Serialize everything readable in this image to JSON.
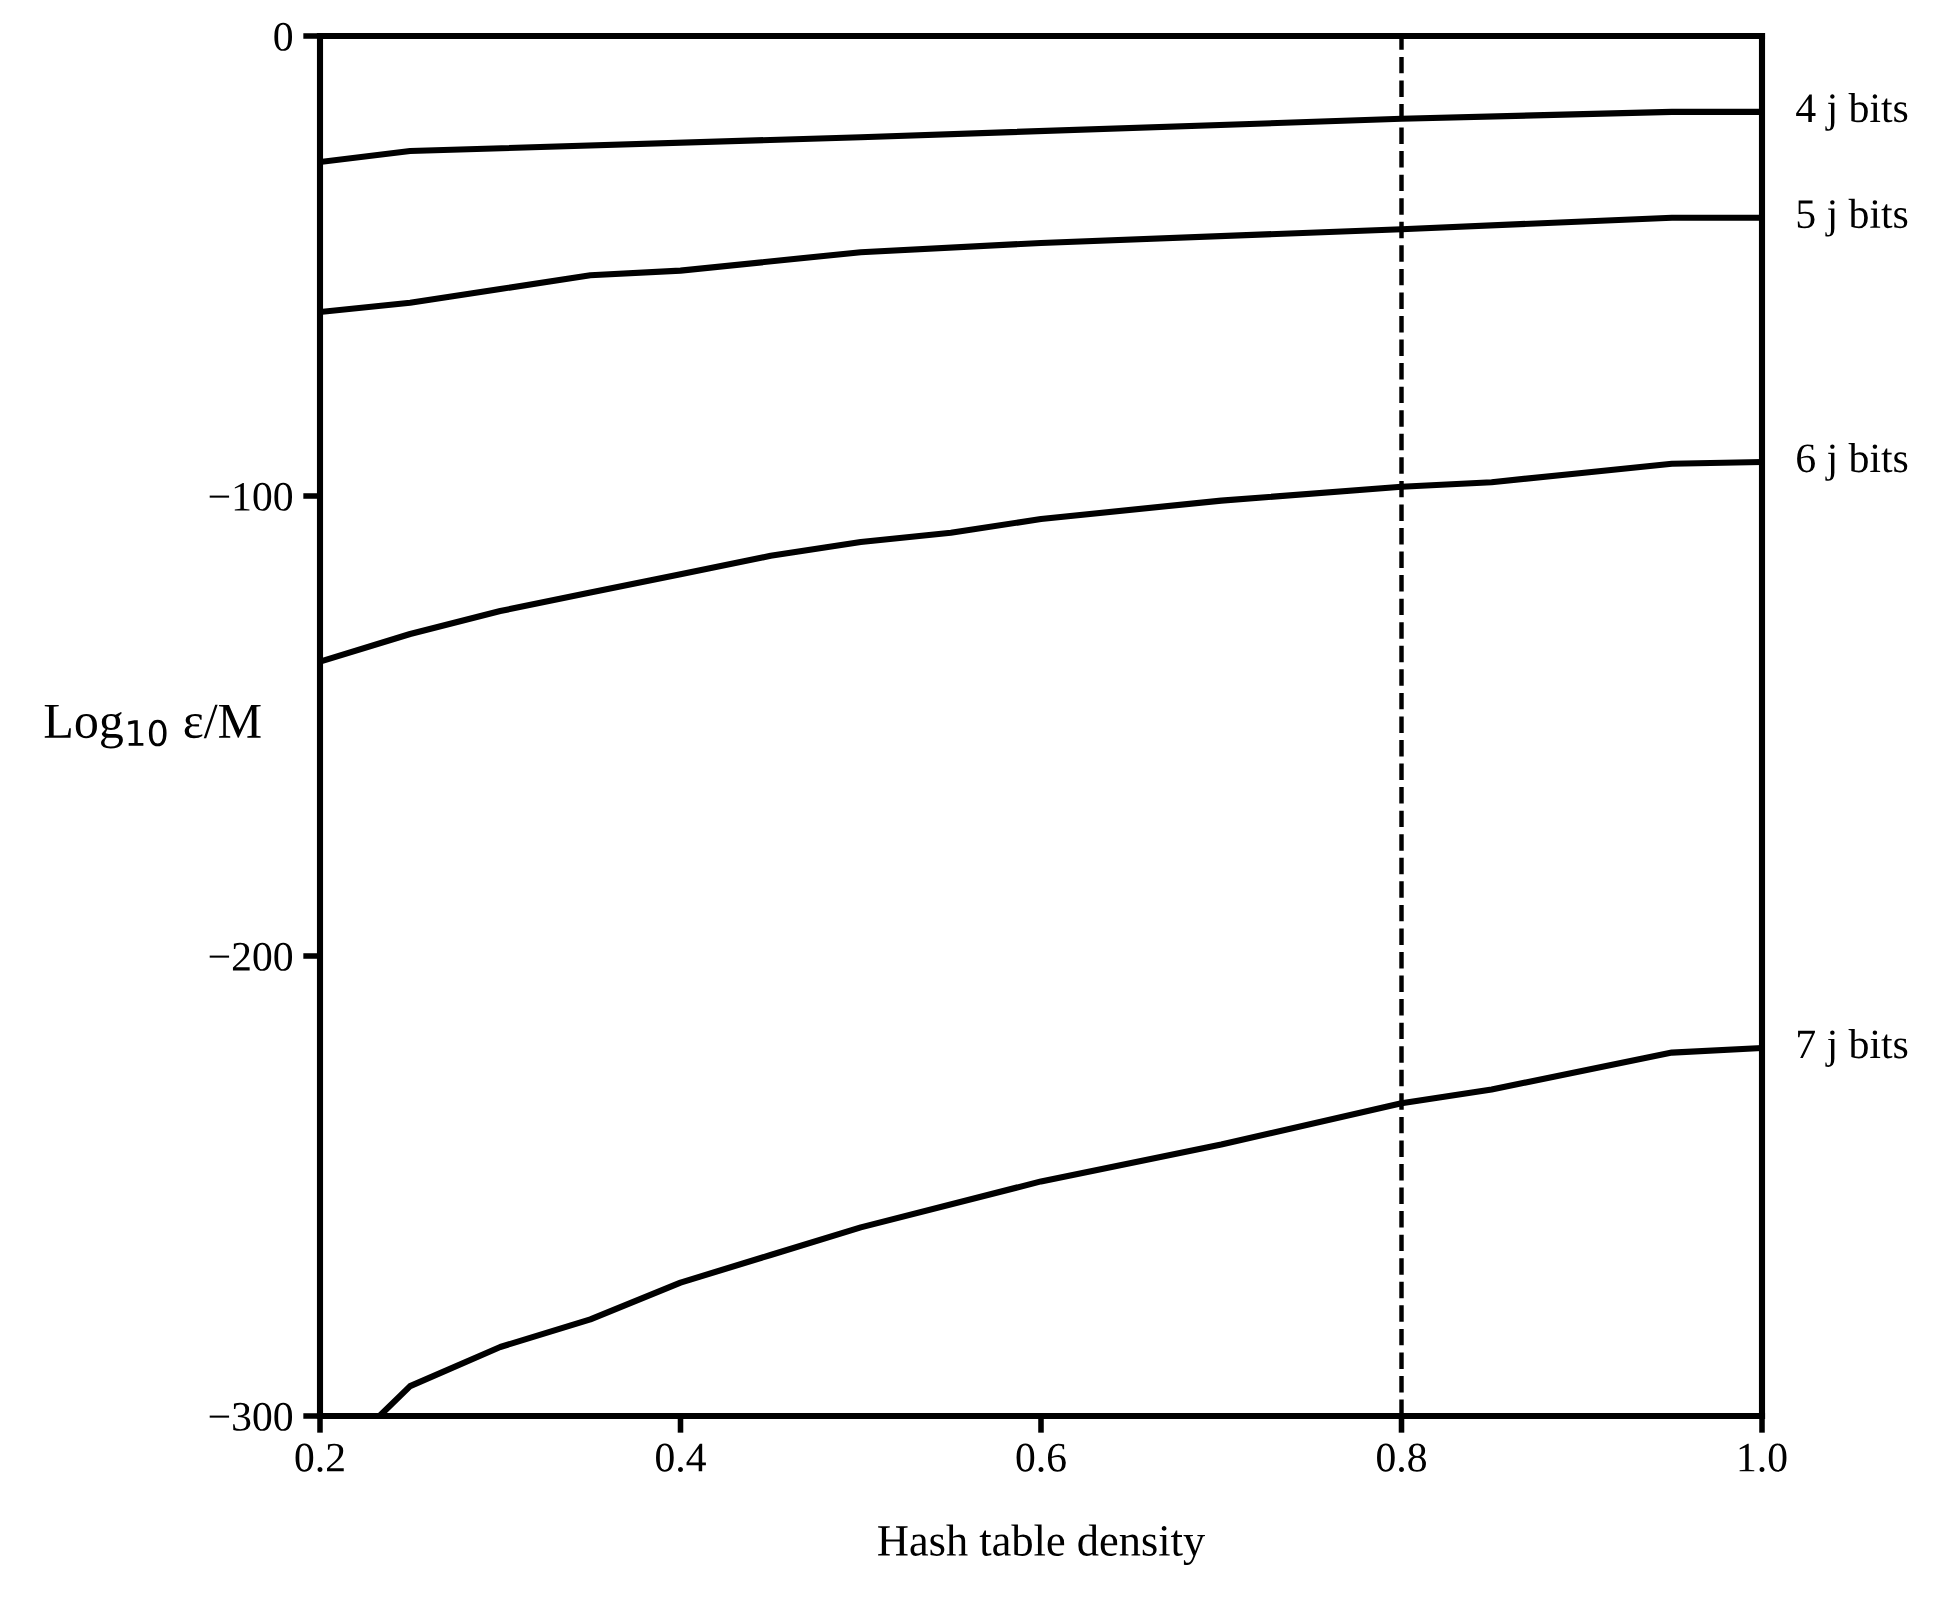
{
  "chart_data": {
    "type": "line",
    "xlabel": "Hash table density",
    "ylabel": "Log$_{10}$ ε/M",
    "xlim": [
      0.2,
      1.0
    ],
    "ylim": [
      -300,
      0
    ],
    "xticks": [
      {
        "value": 0.2,
        "label": "0.2"
      },
      {
        "value": 0.4,
        "label": "0.4"
      },
      {
        "value": 0.6,
        "label": "0.6"
      },
      {
        "value": 0.8,
        "label": "0.8"
      },
      {
        "value": 1.0,
        "label": "1.0"
      }
    ],
    "yticks": [
      {
        "value": 0,
        "label": "0"
      },
      {
        "value": -100,
        "label": "−100"
      },
      {
        "value": -200,
        "label": "−200"
      },
      {
        "value": -300,
        "label": "−300"
      }
    ],
    "grid": false,
    "legend": false,
    "marker": "none",
    "line_style": "solid",
    "ref_lines": [
      {
        "axis": "x",
        "value": 0.8,
        "line_style": "dashed",
        "color": "#000000"
      }
    ],
    "series": [
      {
        "name": "4 j bits",
        "color": "#000000",
        "x": [
          0.2,
          0.25,
          0.5,
          0.8,
          0.95,
          1.0
        ],
        "values": [
          -27.4,
          -25,
          -22,
          -18,
          -16.5,
          -16.5
        ]
      },
      {
        "name": "5 j bits",
        "color": "#000000",
        "x": [
          0.2,
          0.25,
          0.3,
          0.35,
          0.4,
          0.5,
          0.6,
          0.8,
          0.95,
          1.0
        ],
        "values": [
          -60,
          -58,
          -55,
          -52,
          -51,
          -47,
          -45,
          -42,
          -39.5,
          -39.5
        ]
      },
      {
        "name": "6 j bits",
        "color": "#000000",
        "x": [
          0.2,
          0.25,
          0.3,
          0.35,
          0.4,
          0.45,
          0.5,
          0.55,
          0.6,
          0.7,
          0.8,
          0.85,
          0.9,
          0.95,
          1.0
        ],
        "values": [
          -136,
          -130,
          -125,
          -121,
          -117,
          -113,
          -110,
          -108,
          -105,
          -101,
          -98,
          -97,
          -95,
          -93,
          -92.6
        ]
      },
      {
        "name": "7 j bits",
        "color": "#000000",
        "x": [
          0.233,
          0.25,
          0.3,
          0.35,
          0.4,
          0.45,
          0.5,
          0.6,
          0.7,
          0.8,
          0.85,
          0.9,
          0.95,
          1.0
        ],
        "values": [
          -300,
          -293.5,
          -285,
          -279,
          -271,
          -265,
          -259,
          -249,
          -241,
          -232,
          -229,
          -225,
          -221,
          -220
        ]
      }
    ]
  }
}
